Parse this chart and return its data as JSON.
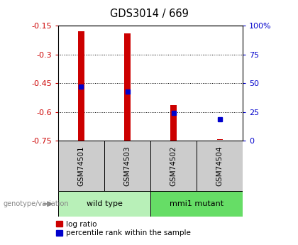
{
  "title": "GDS3014 / 669",
  "samples": [
    "GSM74501",
    "GSM74503",
    "GSM74502",
    "GSM74504"
  ],
  "log_ratio_bottoms": [
    -0.75,
    -0.75,
    -0.75,
    -0.745
  ],
  "log_ratio_tops": [
    -0.18,
    -0.19,
    -0.565,
    -0.74
  ],
  "percentile_ranks": [
    47,
    43,
    24,
    19
  ],
  "ylim_left": [
    -0.75,
    -0.15
  ],
  "ylim_right": [
    0,
    100
  ],
  "left_ticks": [
    -0.75,
    -0.6,
    -0.45,
    -0.3,
    -0.15
  ],
  "right_ticks": [
    0,
    25,
    50,
    75,
    100
  ],
  "right_tick_labels": [
    "0",
    "25",
    "50",
    "75",
    "100%"
  ],
  "left_color": "#cc0000",
  "right_color": "#0000cc",
  "bar_color": "#cc0000",
  "dot_color": "#0000cc",
  "bg_color": "#ffffff",
  "plot_bg": "#ffffff",
  "label_area_color": "#cccccc",
  "group_row_colors": [
    "#b8f0b8",
    "#66dd66"
  ],
  "groups_info": [
    {
      "start": 0,
      "end": 2,
      "label": "wild type",
      "color": "#b8f0b8"
    },
    {
      "start": 2,
      "end": 4,
      "label": "mmi1 mutant",
      "color": "#66dd66"
    }
  ],
  "legend_items": [
    {
      "label": "log ratio",
      "color": "#cc0000"
    },
    {
      "label": "percentile rank within the sample",
      "color": "#0000cc"
    }
  ],
  "geno_label": "genotype/variation",
  "geno_label_color": "#888888"
}
